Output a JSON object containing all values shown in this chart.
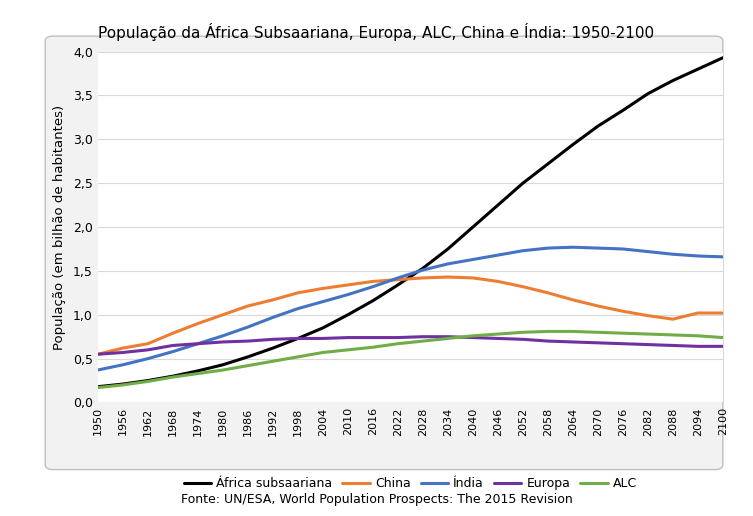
{
  "title": "População da África Subsaariana, Europa, ALC, China e Índia: 1950-2100",
  "ylabel": "População (em bilhão de habitantes)",
  "source": "Fonte: UN/ESA, World Population Prospects: The 2015 Revision",
  "years": [
    1950,
    1956,
    1962,
    1968,
    1974,
    1980,
    1986,
    1992,
    1998,
    2004,
    2010,
    2016,
    2022,
    2028,
    2034,
    2040,
    2046,
    2052,
    2058,
    2064,
    2070,
    2076,
    2082,
    2088,
    2094,
    2100
  ],
  "africa_subsaariana": [
    0.18,
    0.21,
    0.25,
    0.3,
    0.36,
    0.43,
    0.52,
    0.62,
    0.73,
    0.85,
    1.0,
    1.16,
    1.34,
    1.53,
    1.75,
    2.0,
    2.25,
    2.5,
    2.72,
    2.94,
    3.15,
    3.33,
    3.52,
    3.67,
    3.8,
    3.93
  ],
  "china": [
    0.55,
    0.62,
    0.67,
    0.79,
    0.9,
    1.0,
    1.1,
    1.17,
    1.25,
    1.3,
    1.34,
    1.38,
    1.4,
    1.42,
    1.43,
    1.42,
    1.38,
    1.32,
    1.25,
    1.17,
    1.1,
    1.04,
    0.99,
    0.95,
    1.02,
    1.02
  ],
  "india": [
    0.37,
    0.43,
    0.5,
    0.58,
    0.67,
    0.76,
    0.86,
    0.97,
    1.07,
    1.15,
    1.23,
    1.32,
    1.42,
    1.51,
    1.58,
    1.63,
    1.68,
    1.73,
    1.76,
    1.77,
    1.76,
    1.75,
    1.72,
    1.69,
    1.67,
    1.66
  ],
  "europa": [
    0.55,
    0.57,
    0.6,
    0.65,
    0.67,
    0.69,
    0.7,
    0.72,
    0.73,
    0.73,
    0.74,
    0.74,
    0.74,
    0.75,
    0.75,
    0.74,
    0.73,
    0.72,
    0.7,
    0.69,
    0.68,
    0.67,
    0.66,
    0.65,
    0.64,
    0.64
  ],
  "alc": [
    0.17,
    0.2,
    0.24,
    0.29,
    0.33,
    0.37,
    0.42,
    0.47,
    0.52,
    0.57,
    0.6,
    0.63,
    0.67,
    0.7,
    0.73,
    0.76,
    0.78,
    0.8,
    0.81,
    0.81,
    0.8,
    0.79,
    0.78,
    0.77,
    0.76,
    0.74
  ],
  "colors": {
    "africa_subsaariana": "#000000",
    "china": "#ED7D31",
    "india": "#4472C4",
    "europa": "#7030A0",
    "alc": "#70AD47"
  },
  "legend_labels": {
    "africa_subsaariana": "África subsaariana",
    "china": "China",
    "india": "Índia",
    "europa": "Europa",
    "alc": "ALC"
  },
  "ylim": [
    0.0,
    4.0
  ],
  "yticks": [
    0.0,
    0.5,
    1.0,
    1.5,
    2.0,
    2.5,
    3.0,
    3.5,
    4.0
  ],
  "background_color": "#FFFFFF",
  "plot_bg_color": "#FFFFFF",
  "grid_color": "#D9D9D9",
  "linewidth": 2.2,
  "box_facecolor": "#F2F2F2",
  "box_edgecolor": "#BFBFBF"
}
